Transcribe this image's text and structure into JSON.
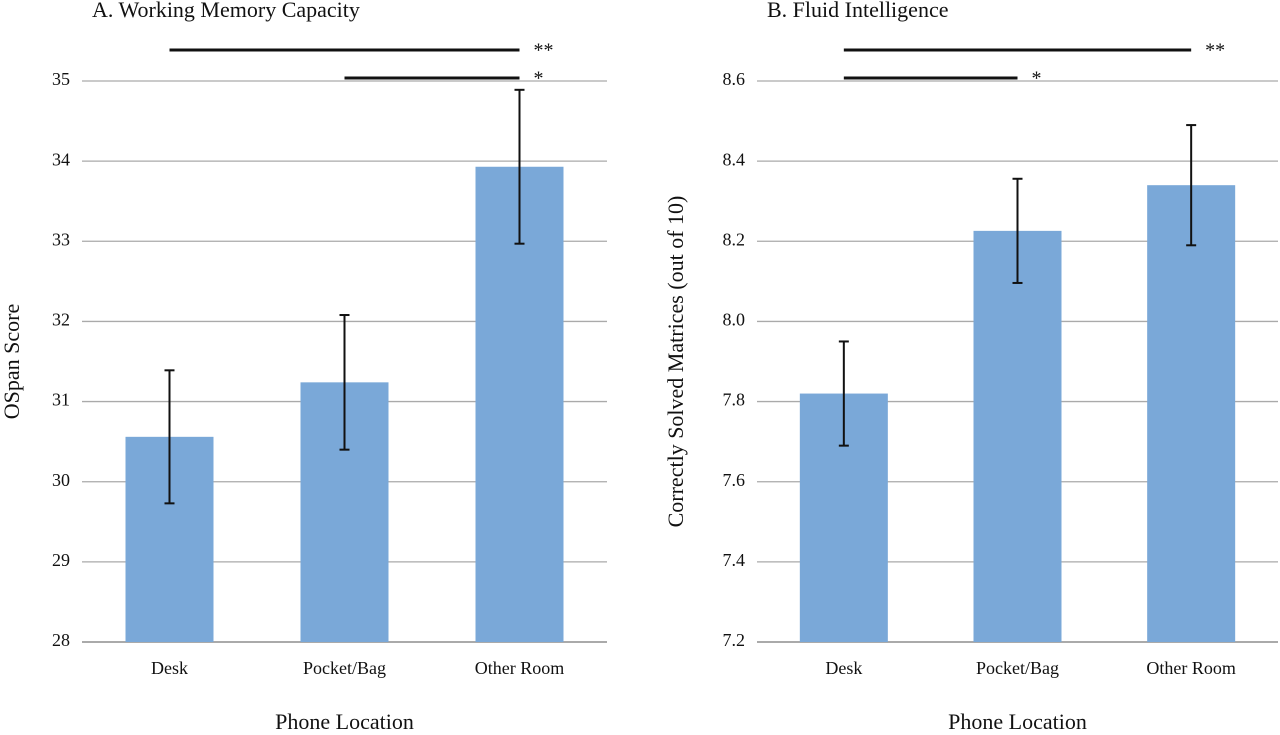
{
  "chart_data": [
    {
      "type": "bar",
      "title": "A. Working Memory Capacity",
      "x_label": "Phone Location",
      "y_label": "OSpan Score",
      "categories": [
        "Desk",
        "Pocket/Bag",
        "Other Room"
      ],
      "series": [
        {
          "color": "#7aa8d8",
          "values": [
            30.56,
            31.24,
            33.93
          ],
          "errors": [
            0.83,
            0.84,
            0.96
          ]
        }
      ],
      "ylim": [
        28,
        35
      ],
      "yticks": [
        28,
        29,
        30,
        31,
        32,
        33,
        34,
        35
      ],
      "grid": true,
      "annotations": [
        {
          "label": "**",
          "from": 0,
          "to": 2
        },
        {
          "label": "*",
          "from": 1,
          "to": 2
        }
      ]
    },
    {
      "type": "bar",
      "title": "B. Fluid Intelligence",
      "x_label": "Phone Location",
      "y_label": "Correctly Solved Matrices (out of 10)",
      "categories": [
        "Desk",
        "Pocket/Bag",
        "Other Room"
      ],
      "series": [
        {
          "color": "#7aa8d8",
          "values": [
            7.82,
            8.226,
            8.34
          ],
          "errors": [
            0.13,
            0.13,
            0.15
          ]
        }
      ],
      "ylim": [
        7.2,
        8.6
      ],
      "yticks": [
        7.2,
        7.4,
        7.6,
        7.8,
        {
          "value": 8,
          "label": "8.0"
        },
        8.2,
        8.4,
        8.6
      ],
      "grid": true,
      "annotations": [
        {
          "label": "**",
          "from": 0,
          "to": 2
        },
        {
          "label": "*",
          "from": 0,
          "to": 1
        }
      ]
    }
  ]
}
